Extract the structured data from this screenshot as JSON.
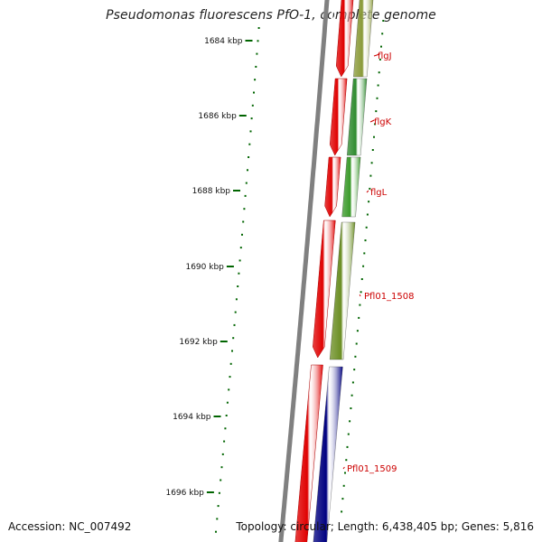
{
  "title": "Pseudomonas fluorescens PfO-1, complete genome",
  "footer": {
    "accession": "Accession: NC_007492",
    "summary": "Topology: circular; Length: 6,438,405 bp; Genes: 5,816"
  },
  "scale": {
    "ticks": [
      "1684 kbp",
      "1686 kbp",
      "1688 kbp",
      "1690 kbp",
      "1692 kbp",
      "1694 kbp",
      "1696 kbp"
    ]
  },
  "genes": [
    {
      "label": "flgJ",
      "color": "#8a9a38"
    },
    {
      "label": "flgK",
      "color": "#2e8b2e"
    },
    {
      "label": "flgL",
      "color": "#3a9a2a"
    },
    {
      "label": "Pfl01_1508",
      "color": "#6b8e23"
    },
    {
      "label": "Pfl01_1509",
      "color": "#000080"
    }
  ],
  "colors": {
    "backbone": "#808080",
    "strand_red": "#ff0000",
    "tick": "#006400",
    "label_line": "#cc0000",
    "label_text": "#cc0000",
    "forward_cds": "#e00000"
  }
}
